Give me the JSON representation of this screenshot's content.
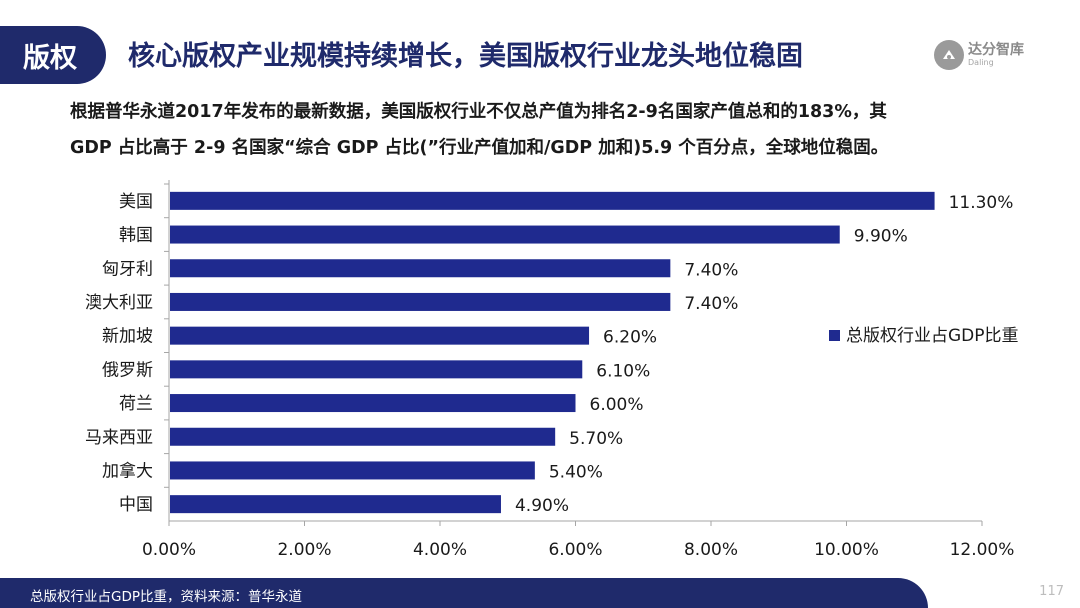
{
  "header": {
    "section_label": "版权",
    "title": "核心版权产业规模持续增长，美国版权行业龙头地位稳固",
    "logo_name": "达分智库",
    "logo_sub": "Daling"
  },
  "intro": {
    "line1": "根据普华永道2017年发布的最新数据，美国版权行业不仅总产值为排名2-9名国家产值总和的183%，其",
    "line2": "GDP 占比高于 2-9 名国家“综合 GDP 占比(”行业产值加和/GDP 加和)5.9 个百分点，全球地位稳固。"
  },
  "chart_data": {
    "type": "bar",
    "orientation": "horizontal",
    "categories": [
      "美国",
      "韩国",
      "匈牙利",
      "澳大利亚",
      "新加坡",
      "俄罗斯",
      "荷兰",
      "马来西亚",
      "加拿大",
      "中国"
    ],
    "series": [
      {
        "name": "总版权行业占GDP比重",
        "values": [
          11.3,
          9.9,
          7.4,
          7.4,
          6.2,
          6.1,
          6.0,
          5.7,
          5.4,
          4.9
        ],
        "value_labels": [
          "11.30%",
          "9.90%",
          "7.40%",
          "7.40%",
          "6.20%",
          "6.10%",
          "6.00%",
          "5.70%",
          "5.40%",
          "4.90%"
        ]
      }
    ],
    "x_ticks": [
      0,
      2,
      4,
      6,
      8,
      10,
      12
    ],
    "x_tick_labels": [
      "0.00%",
      "2.00%",
      "4.00%",
      "6.00%",
      "8.00%",
      "10.00%",
      "12.00%"
    ],
    "xlim": [
      0,
      12
    ],
    "grid": false,
    "legend_position": "right",
    "bar_color": "#1f2a8f"
  },
  "footer": {
    "source": "总版权行业占GDP比重，资料来源：普华永道",
    "page_number": "117"
  }
}
